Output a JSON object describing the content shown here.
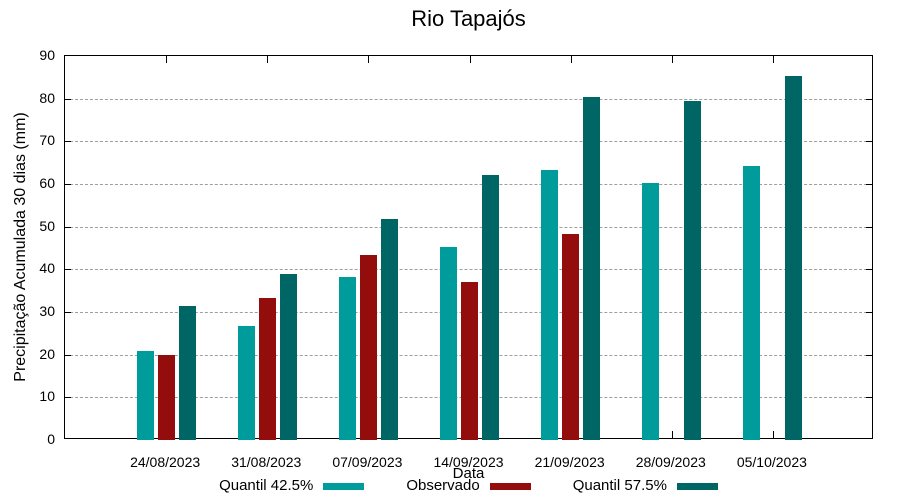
{
  "title": "Rio Tapajós",
  "chart_data": {
    "type": "bar",
    "title": "Rio Tapajós",
    "xlabel": "Data",
    "ylabel": "Precipitação Acumulada 30 dias (mm)",
    "ylim": [
      0,
      90
    ],
    "ytick_step": 10,
    "grid": true,
    "legend_position": "bottom",
    "categories": [
      "24/08/2023",
      "31/08/2023",
      "07/09/2023",
      "14/09/2023",
      "21/09/2023",
      "28/09/2023",
      "05/10/2023"
    ],
    "series": [
      {
        "name": "Quantil 42.5%",
        "color": "#009B9B",
        "values": [
          20.9,
          26.7,
          38.2,
          45.3,
          63.3,
          60.3,
          64.3
        ]
      },
      {
        "name": "Observado",
        "color": "#930D0D",
        "values": [
          19.9,
          33.3,
          43.4,
          37.0,
          48.2,
          null,
          null
        ]
      },
      {
        "name": "Quantil 57.5%",
        "color": "#006565",
        "values": [
          31.5,
          38.9,
          51.8,
          62.0,
          80.5,
          79.5,
          85.2
        ]
      }
    ]
  },
  "colors": {
    "background": "#ffffff",
    "axis": "#000000",
    "grid": "#9e9e9e",
    "text": "#000000"
  }
}
